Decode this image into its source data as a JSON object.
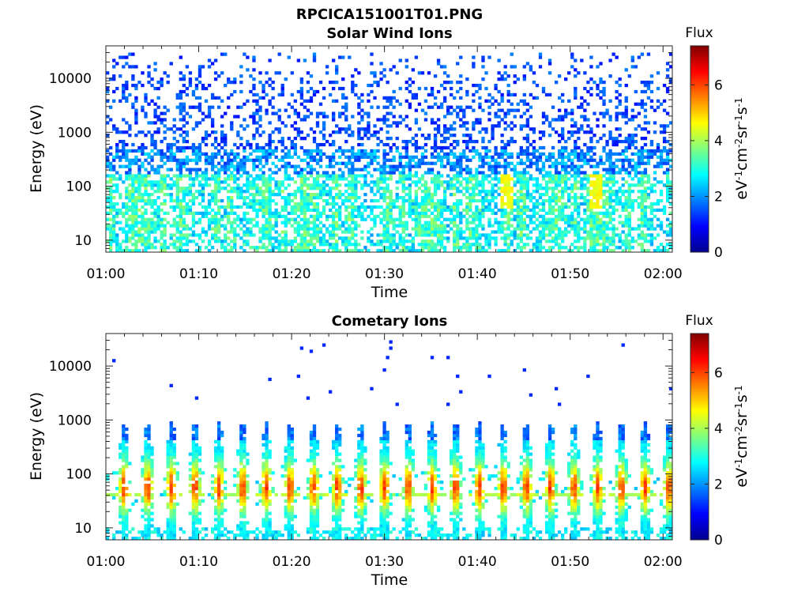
{
  "figure": {
    "title": "RPCICA151001T01.PNG"
  },
  "chart_data": [
    {
      "type": "heatmap",
      "title": "Solar Wind Ions",
      "xlabel": "Time",
      "ylabel": "Energy (eV)",
      "x_ticks": [
        "01:00",
        "01:10",
        "01:20",
        "01:30",
        "01:40",
        "01:50",
        "02:00"
      ],
      "y_scale": "log",
      "y_ticks": [
        10,
        100,
        1000,
        10000
      ],
      "y_tick_labels": [
        "10",
        "100",
        "1000",
        "10000"
      ],
      "ylim": [
        6,
        40000
      ],
      "colorbar": {
        "title": "Flux",
        "label": "eV-1cm-2sr-1s-1",
        "range": [
          0,
          7.4
        ],
        "ticks": [
          0,
          2,
          4,
          6
        ],
        "tick_labels": [
          "0",
          "2",
          "4",
          "6"
        ],
        "colormap": "jet"
      },
      "features": "Sparse blue (flux 1-2) speckle above ~500 eV; cyan/green (flux 2-4) bursts 20-400 eV; yellow peaks (~4.5-5) near 01:43 and 01:52 at ~80 eV"
    },
    {
      "type": "heatmap",
      "title": "Cometary Ions",
      "xlabel": "Time",
      "ylabel": "Energy (eV)",
      "x_ticks": [
        "01:00",
        "01:10",
        "01:20",
        "01:30",
        "01:40",
        "01:50",
        "02:00"
      ],
      "y_scale": "log",
      "y_ticks": [
        10,
        100,
        1000,
        10000
      ],
      "y_tick_labels": [
        "10",
        "100",
        "1000",
        "10000"
      ],
      "ylim": [
        6,
        40000
      ],
      "colorbar": {
        "title": "Flux",
        "label": "eV-1cm-2sr-1s-1",
        "range": [
          0,
          7.4
        ],
        "ticks": [
          0,
          2,
          4,
          6
        ],
        "tick_labels": [
          "0",
          "2",
          "4",
          "6"
        ],
        "colormap": "jet"
      },
      "features": "Periodic bursts roughly every 2.5 minutes spanning 10-800 eV, peak flux ~6 (orange/red) at 40-100 eV; horizontal band near 40 eV; sparse blue points above 2000 eV"
    }
  ]
}
